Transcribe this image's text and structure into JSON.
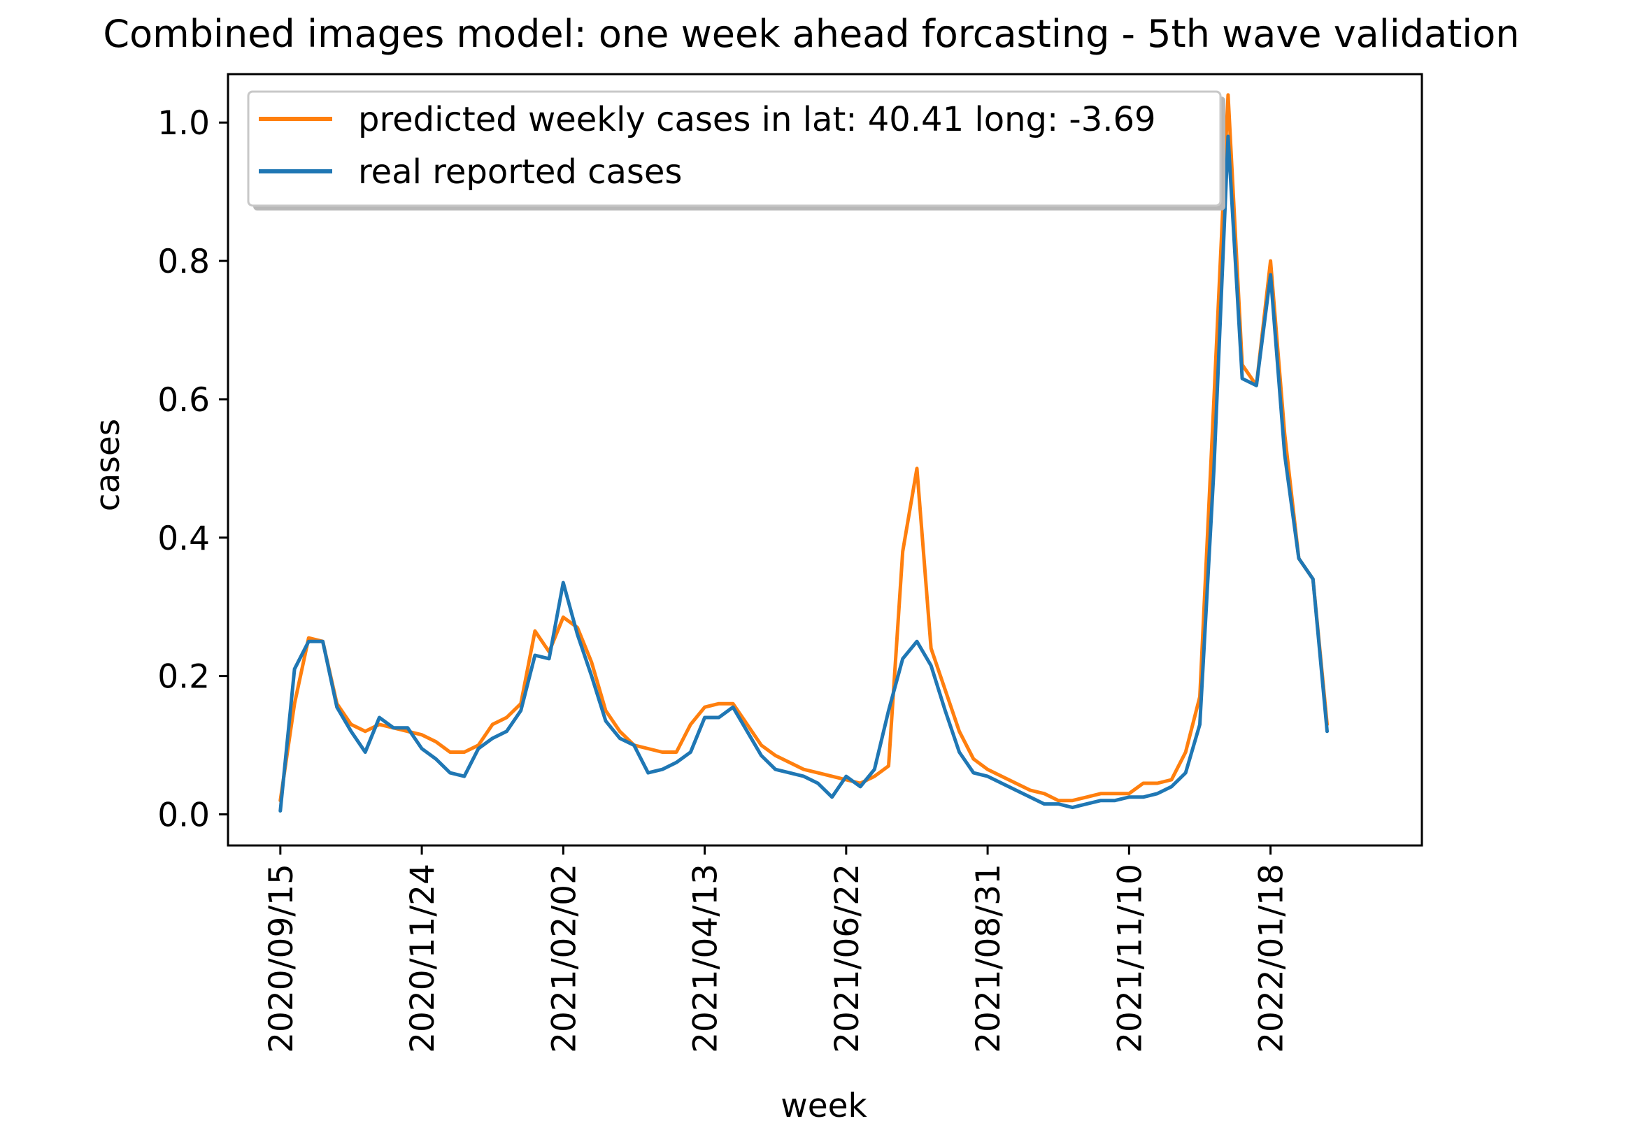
{
  "chart_data": {
    "type": "line",
    "title": "Combined images model: one week ahead forcasting - 5th wave validation",
    "xlabel": "week",
    "ylabel": "cases",
    "ylim": [
      -0.045,
      1.07
    ],
    "xlim": [
      -3.7,
      80.7
    ],
    "yticks": [
      0.0,
      0.2,
      0.4,
      0.6,
      0.8,
      1.0
    ],
    "ytick_labels": [
      "0.0",
      "0.2",
      "0.4",
      "0.6",
      "0.8",
      "1.0"
    ],
    "xticks": [
      0,
      10,
      20,
      30,
      40,
      50,
      60,
      70
    ],
    "xtick_labels": [
      "2020/09/15",
      "2020/11/24",
      "2021/02/02",
      "2021/04/13",
      "2021/06/22",
      "2021/08/31",
      "2021/11/10",
      "2022/01/18"
    ],
    "grid": false,
    "legend_position": "upper-left",
    "series": [
      {
        "name": "predicted weekly cases in lat: 40.41 long: -3.69",
        "color": "#ff7f0e",
        "x": [
          0,
          1,
          2,
          3,
          4,
          5,
          6,
          7,
          8,
          9,
          10,
          11,
          12,
          13,
          14,
          15,
          16,
          17,
          18,
          19,
          20,
          21,
          22,
          23,
          24,
          25,
          26,
          27,
          28,
          29,
          30,
          31,
          32,
          33,
          34,
          35,
          36,
          37,
          38,
          39,
          40,
          41,
          42,
          43,
          44,
          45,
          46,
          47,
          48,
          49,
          50,
          51,
          52,
          53,
          54,
          55,
          56,
          57,
          58,
          59,
          60,
          61,
          62,
          63,
          64,
          65,
          66,
          67,
          68,
          69,
          70,
          71,
          72,
          73,
          74
        ],
        "values": [
          0.02,
          0.16,
          0.255,
          0.25,
          0.16,
          0.13,
          0.12,
          0.13,
          0.125,
          0.12,
          0.115,
          0.105,
          0.09,
          0.09,
          0.1,
          0.13,
          0.14,
          0.16,
          0.265,
          0.235,
          0.285,
          0.27,
          0.22,
          0.15,
          0.12,
          0.1,
          0.095,
          0.09,
          0.09,
          0.13,
          0.155,
          0.16,
          0.16,
          0.13,
          0.1,
          0.085,
          0.075,
          0.065,
          0.06,
          0.055,
          0.05,
          0.045,
          0.055,
          0.07,
          0.38,
          0.5,
          0.24,
          0.18,
          0.12,
          0.08,
          0.065,
          0.055,
          0.045,
          0.035,
          0.03,
          0.02,
          0.02,
          0.025,
          0.03,
          0.03,
          0.03,
          0.045,
          0.045,
          0.05,
          0.09,
          0.17,
          0.6,
          1.04,
          0.65,
          0.62,
          0.8,
          0.55,
          0.37,
          0.34,
          0.13
        ]
      },
      {
        "name": "real reported cases",
        "color": "#1f77b4",
        "x": [
          0,
          1,
          2,
          3,
          4,
          5,
          6,
          7,
          8,
          9,
          10,
          11,
          12,
          13,
          14,
          15,
          16,
          17,
          18,
          19,
          20,
          21,
          22,
          23,
          24,
          25,
          26,
          27,
          28,
          29,
          30,
          31,
          32,
          33,
          34,
          35,
          36,
          37,
          38,
          39,
          40,
          41,
          42,
          43,
          44,
          45,
          46,
          47,
          48,
          49,
          50,
          51,
          52,
          53,
          54,
          55,
          56,
          57,
          58,
          59,
          60,
          61,
          62,
          63,
          64,
          65,
          66,
          67,
          68,
          69,
          70,
          71,
          72,
          73,
          74
        ],
        "values": [
          0.005,
          0.21,
          0.25,
          0.25,
          0.155,
          0.12,
          0.09,
          0.14,
          0.125,
          0.125,
          0.095,
          0.08,
          0.06,
          0.055,
          0.095,
          0.11,
          0.12,
          0.15,
          0.23,
          0.225,
          0.335,
          0.26,
          0.2,
          0.135,
          0.11,
          0.1,
          0.06,
          0.065,
          0.075,
          0.09,
          0.14,
          0.14,
          0.155,
          0.12,
          0.085,
          0.065,
          0.06,
          0.055,
          0.045,
          0.025,
          0.055,
          0.04,
          0.065,
          0.15,
          0.225,
          0.25,
          0.215,
          0.15,
          0.09,
          0.06,
          0.055,
          0.045,
          0.035,
          0.025,
          0.015,
          0.015,
          0.01,
          0.015,
          0.02,
          0.02,
          0.025,
          0.025,
          0.03,
          0.04,
          0.06,
          0.13,
          0.5,
          0.98,
          0.63,
          0.62,
          0.78,
          0.52,
          0.37,
          0.34,
          0.12
        ]
      }
    ]
  }
}
